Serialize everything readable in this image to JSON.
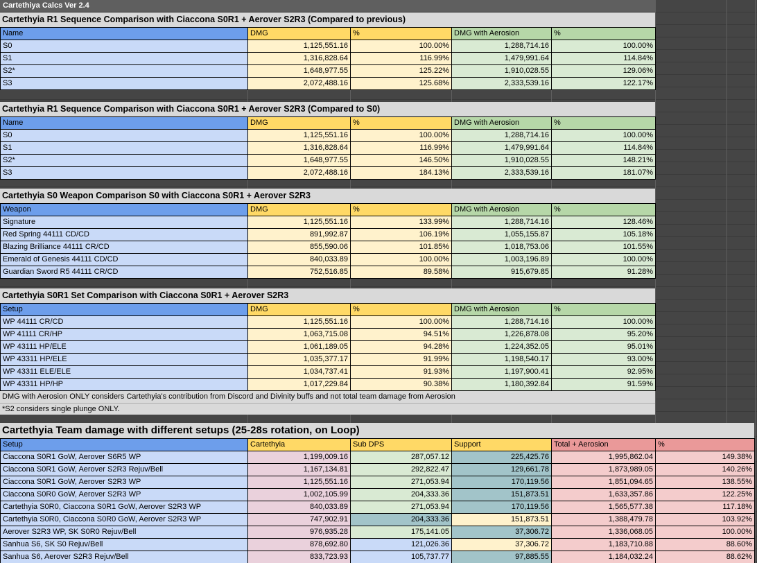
{
  "sheet": {
    "title_bar": "Cartethiya Calcs Ver 2.4"
  },
  "colors": {
    "header_blue": "#6d9eeb",
    "header_yellow": "#ffd966",
    "header_green": "#b6d7a8",
    "header_red": "#ea9999",
    "cell_blue": "#c9daf8",
    "cell_yellow": "#fff2cc",
    "cell_green": "#d9ead3",
    "cell_pink": "#f4cccc",
    "cell_rose": "#ead1dc",
    "cell_teal": "#a2c4c9",
    "title_gray": "#d9d9d9",
    "background_dark": "#434343",
    "top_bar_gray": "#5f5f5f"
  },
  "comparison_tables": [
    {
      "title": "Cartethyia R1 Sequence Comparison with Ciaccona S0R1 + Aerover S2R3 (Compared to previous)",
      "columns": [
        "Name",
        "DMG",
        "%",
        "DMG with Aerosion",
        "%"
      ],
      "header_colors": [
        "blue",
        "yellow",
        "yellow",
        "green",
        "green"
      ],
      "cell_colors": [
        "blue",
        "yellow",
        "yellow",
        "green",
        "green"
      ],
      "rows": [
        [
          "S0",
          "1,125,551.16",
          "100.00%",
          "1,288,714.16",
          "100.00%"
        ],
        [
          "S1",
          "1,316,828.64",
          "116.99%",
          "1,479,991.64",
          "114.84%"
        ],
        [
          "S2*",
          "1,648,977.55",
          "125.22%",
          "1,910,028.55",
          "129.06%"
        ],
        [
          "S3",
          "2,072,488.16",
          "125.68%",
          "2,333,539.16",
          "122.17%"
        ]
      ]
    },
    {
      "title": "Cartethyia R1 Sequence Comparison with Ciaccona S0R1 + Aerover S2R3 (Compared to S0)",
      "columns": [
        "Name",
        "DMG",
        "%",
        "DMG with Aerosion",
        "%"
      ],
      "header_colors": [
        "blue",
        "yellow",
        "yellow",
        "green",
        "green"
      ],
      "cell_colors": [
        "blue",
        "yellow",
        "yellow",
        "green",
        "green"
      ],
      "rows": [
        [
          "S0",
          "1,125,551.16",
          "100.00%",
          "1,288,714.16",
          "100.00%"
        ],
        [
          "S1",
          "1,316,828.64",
          "116.99%",
          "1,479,991.64",
          "114.84%"
        ],
        [
          "S2*",
          "1,648,977.55",
          "146.50%",
          "1,910,028.55",
          "148.21%"
        ],
        [
          "S3",
          "2,072,488.16",
          "184.13%",
          "2,333,539.16",
          "181.07%"
        ]
      ]
    },
    {
      "title": "Cartethyia S0 Weapon Comparison S0 with Ciaccona S0R1 + Aerover S2R3",
      "columns": [
        "Weapon",
        "DMG",
        "%",
        "DMG with Aerosion",
        "%"
      ],
      "header_colors": [
        "blue",
        "yellow",
        "yellow",
        "green",
        "green"
      ],
      "cell_colors": [
        "blue",
        "yellow",
        "yellow",
        "green",
        "green"
      ],
      "rows": [
        [
          "Signature",
          "1,125,551.16",
          "133.99%",
          "1,288,714.16",
          "128.46%"
        ],
        [
          "Red Spring 44111 CD/CD",
          "891,992.87",
          "106.19%",
          "1,055,155.87",
          "105.18%"
        ],
        [
          "Blazing Brilliance 44111 CR/CD",
          "855,590.06",
          "101.85%",
          "1,018,753.06",
          "101.55%"
        ],
        [
          "Emerald of Genesis 44111 CD/CD",
          "840,033.89",
          "100.00%",
          "1,003,196.89",
          "100.00%"
        ],
        [
          "Guardian Sword R5 44111 CR/CD",
          "752,516.85",
          "89.58%",
          "915,679.85",
          "91.28%"
        ]
      ]
    },
    {
      "title": "Cartethyia S0R1 Set Comparison with Ciaccona S0R1 + Aerover S2R3",
      "columns": [
        "Setup",
        "DMG",
        "%",
        "DMG with Aerosion",
        "%"
      ],
      "header_colors": [
        "blue",
        "yellow",
        "yellow",
        "green",
        "green"
      ],
      "cell_colors": [
        "blue",
        "yellow",
        "yellow",
        "green",
        "green"
      ],
      "rows": [
        [
          "WP 44111 CR/CD",
          "1,125,551.16",
          "100.00%",
          "1,288,714.16",
          "100.00%"
        ],
        [
          "WP 41111 CR/HP",
          "1,063,715.08",
          "94.51%",
          "1,226,878.08",
          "95.20%"
        ],
        [
          "WP 43111 HP/ELE",
          "1,061,189.05",
          "94.28%",
          "1,224,352.05",
          "95.01%"
        ],
        [
          "WP 43311 HP/ELE",
          "1,035,377.17",
          "91.99%",
          "1,198,540.17",
          "93.00%"
        ],
        [
          "WP 43311 ELE/ELE",
          "1,034,737.41",
          "91.93%",
          "1,197,900.41",
          "92.95%"
        ],
        [
          "WP 43311 HP/HP",
          "1,017,229.84",
          "90.38%",
          "1,180,392.84",
          "91.59%"
        ]
      ]
    }
  ],
  "notes": [
    "DMG with Aerosion ONLY considers Cartethyia's contribution from Discord and Divinity buffs and not total team damage from Aerosion",
    "*S2 considers single plunge ONLY."
  ],
  "team": {
    "title": "Cartethyia Team damage with different setups (25-28s rotation, on Loop)",
    "columns": [
      "Setup",
      "Cartethyia",
      "Sub DPS",
      "Support",
      "Total + Aerosion",
      "%"
    ],
    "header_colors": [
      "blue",
      "yellow",
      "yellow",
      "yellow",
      "red",
      "red"
    ],
    "rows": [
      {
        "cells": [
          "Ciaccona S0R1 GoW, Aerover S6R5 WP",
          "1,199,009.16",
          "287,057.12",
          "225,425.76",
          "1,995,862.04",
          "149.38%"
        ],
        "colors": [
          "blue",
          "rose",
          "green",
          "teal",
          "pink",
          "pink"
        ]
      },
      {
        "cells": [
          "Ciaccona S0R1 GoW, Aerover S2R3 Rejuv/Bell",
          "1,167,134.81",
          "292,822.47",
          "129,661.78",
          "1,873,989.05",
          "140.26%"
        ],
        "colors": [
          "blue",
          "rose",
          "green",
          "teal",
          "pink",
          "pink"
        ]
      },
      {
        "cells": [
          "Ciaccona S0R1 GoW, Aerover S2R3 WP",
          "1,125,551.16",
          "271,053.94",
          "170,119.56",
          "1,851,094.65",
          "138.55%"
        ],
        "colors": [
          "blue",
          "rose",
          "green",
          "teal",
          "pink",
          "pink"
        ]
      },
      {
        "cells": [
          "Ciaccona S0R0 GoW, Aerover S2R3 WP",
          "1,002,105.99",
          "204,333.36",
          "151,873.51",
          "1,633,357.86",
          "122.25%"
        ],
        "colors": [
          "blue",
          "rose",
          "green",
          "teal",
          "pink",
          "pink"
        ]
      },
      {
        "cells": [
          "Cartethyia S0R0, Ciaccona S0R1 GoW, Aerover S2R3 WP",
          "840,033.89",
          "271,053.94",
          "170,119.56",
          "1,565,577.38",
          "117.18%"
        ],
        "colors": [
          "blue",
          "rose",
          "green",
          "teal",
          "pink",
          "pink"
        ]
      },
      {
        "cells": [
          "Cartethyia S0R0, Ciaccona S0R0 GoW, Aerover S2R3 WP",
          "747,902.91",
          "204,333.36",
          "151,873.51",
          "1,388,479.78",
          "103.92%"
        ],
        "colors": [
          "blue",
          "rose",
          "teal",
          "yellow",
          "pink",
          "pink"
        ]
      },
      {
        "cells": [
          "Aerover S2R3 WP, SK S0R0 Rejuv/Bell",
          "976,935.28",
          "175,141.05",
          "37,306.72",
          "1,336,068.05",
          "100.00%"
        ],
        "colors": [
          "blue",
          "rose",
          "green",
          "teal",
          "pink",
          "pink"
        ]
      },
      {
        "cells": [
          "Sanhua S6, SK S0 Rejuv/Bell",
          "878,692.80",
          "121,026.36",
          "37,306.72",
          "1,183,710.88",
          "88.60%"
        ],
        "colors": [
          "blue",
          "rose",
          "blue",
          "yellow",
          "pink",
          "pink"
        ]
      },
      {
        "cells": [
          "Sanhua S6, Aerover S2R3 Rejuv/Bell",
          "833,723.93",
          "105,737.77",
          "97,885.55",
          "1,184,032.24",
          "88.62%"
        ],
        "colors": [
          "blue",
          "rose",
          "blue",
          "teal",
          "pink",
          "pink"
        ]
      }
    ]
  }
}
